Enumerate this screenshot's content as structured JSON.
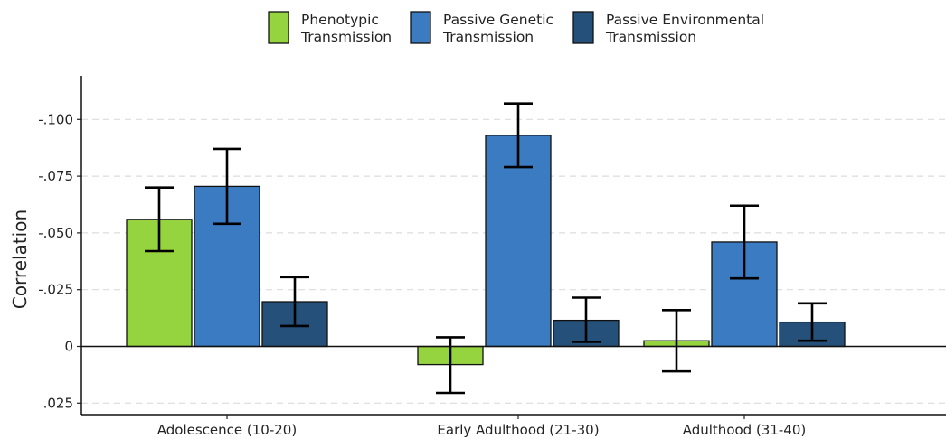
{
  "chart_data": {
    "type": "bar",
    "ylabel": "Correlation",
    "xlabel": "",
    "ylim": [
      0.025,
      -0.12
    ],
    "y_ticks": [
      {
        "value": -0.1,
        "label": "-.100"
      },
      {
        "value": -0.075,
        "label": "-.075"
      },
      {
        "value": -0.05,
        "label": "-.050"
      },
      {
        "value": -0.025,
        "label": "-.025"
      },
      {
        "value": 0,
        "label": "0"
      },
      {
        "value": 0.025,
        "label": ".025"
      }
    ],
    "grid": "horizontal dashed",
    "legend_position": "top",
    "categories": [
      "Adolescence (10-20)",
      "Early Adulthood (21-30)",
      "Adulthood (31-40)"
    ],
    "series": [
      {
        "name": [
          "Phenotypic",
          "Transmission"
        ],
        "color": "#95d33f",
        "values": [
          -0.056,
          0.008,
          -0.0025
        ],
        "error_low": [
          -0.042,
          0.0205,
          0.011
        ],
        "error_high": [
          -0.07,
          -0.004,
          -0.016
        ]
      },
      {
        "name": [
          "Passive Genetic",
          "Transmission"
        ],
        "color": "#3a7bc2",
        "values": [
          -0.0705,
          -0.093,
          -0.046
        ],
        "error_low": [
          -0.054,
          -0.079,
          -0.03
        ],
        "error_high": [
          -0.087,
          -0.107,
          -0.062
        ]
      },
      {
        "name": [
          "Passive Environmental",
          "Transmission"
        ],
        "color": "#24507a",
        "values": [
          -0.0197,
          -0.0115,
          -0.0107
        ],
        "error_low": [
          -0.009,
          -0.002,
          -0.0025
        ],
        "error_high": [
          -0.0305,
          -0.0215,
          -0.019
        ]
      }
    ]
  }
}
